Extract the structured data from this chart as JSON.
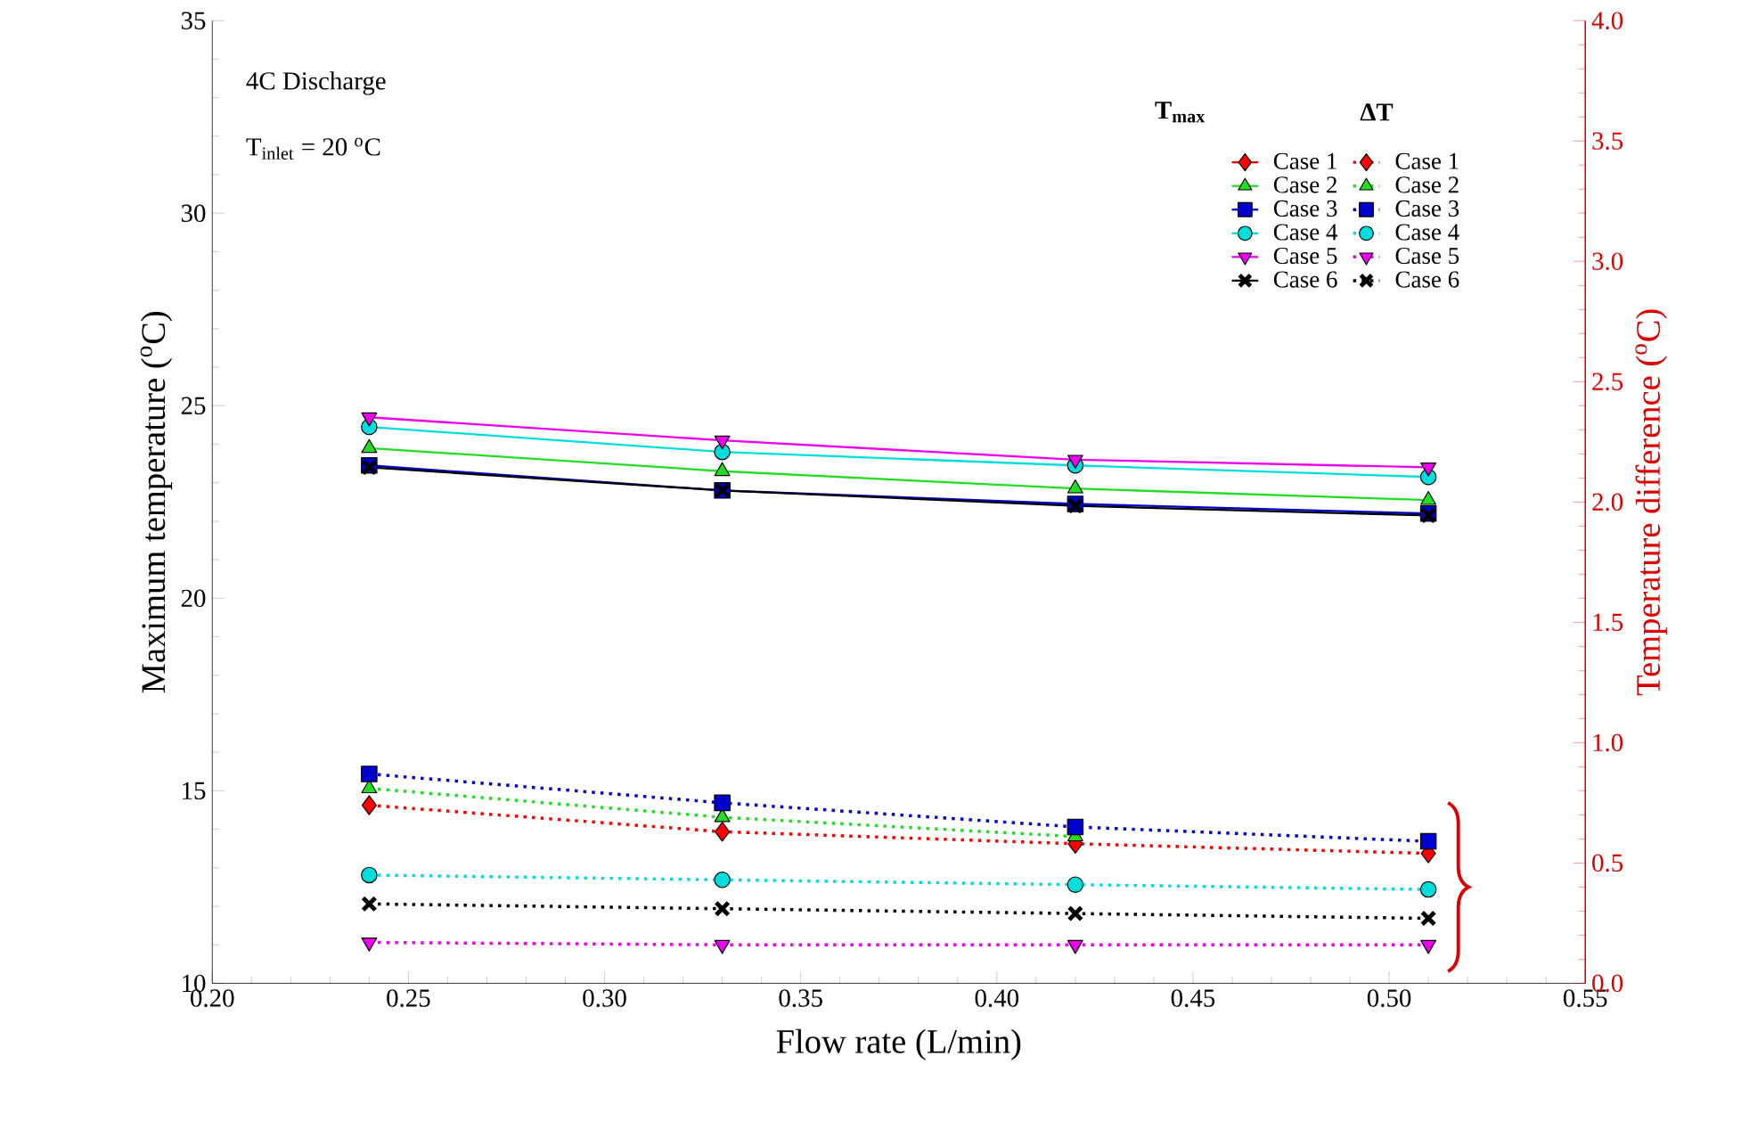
{
  "chart_data": {
    "type": "line",
    "xlabel": "Flow rate (L/min)",
    "ylabel": "Maximum temperature ($^{o}$C)",
    "y2label": "Temperature difference ($^{o}$C)",
    "annotations": [
      "4C Discharge",
      "T$_{inlet}$ = 20 $^{o}$C",
      "T$_{max}$",
      "ΔT"
    ],
    "x": [
      0.24,
      0.33,
      0.42,
      0.51
    ],
    "series": [
      {
        "name": "Case 1",
        "color": "#ff0000",
        "marker": "diamond",
        "line_style": "solid",
        "values": [
          null,
          null,
          null,
          null
        ]
      },
      {
        "name": "Case 2",
        "color": "#22dd22",
        "marker": "triangle",
        "line_style": "solid",
        "values": [
          23.9,
          23.3,
          22.85,
          22.55
        ]
      },
      {
        "name": "Case 3",
        "color": "#0000cc",
        "marker": "square",
        "line_style": "solid",
        "values": [
          23.45,
          22.8,
          22.45,
          22.2
        ]
      },
      {
        "name": "Case 4",
        "color": "#00dddd",
        "marker": "circle",
        "line_style": "solid",
        "values": [
          24.45,
          23.8,
          23.45,
          23.15
        ]
      },
      {
        "name": "Case 5",
        "color": "#ee00ee",
        "marker": "triangle_down",
        "line_style": "solid",
        "values": [
          24.7,
          24.1,
          23.6,
          23.4
        ]
      },
      {
        "name": "Case 6",
        "color": "#000000",
        "marker": "cross",
        "line_style": "solid",
        "values": [
          23.4,
          22.8,
          22.4,
          22.15
        ]
      },
      {
        "name": "Case 1",
        "color": "#ff0000",
        "marker": "diamond",
        "line_style": "dotted",
        "axis": "y2",
        "values": [
          0.74,
          0.63,
          0.58,
          0.54
        ]
      },
      {
        "name": "Case 2",
        "color": "#22dd22",
        "marker": "triangle",
        "line_style": "dotted",
        "axis": "y2",
        "values": [
          0.81,
          0.69,
          0.61,
          null
        ]
      },
      {
        "name": "Case 3",
        "color": "#0000cc",
        "marker": "square",
        "line_style": "dotted",
        "axis": "y2",
        "values": [
          0.87,
          0.75,
          0.65,
          0.59
        ]
      },
      {
        "name": "Case 4",
        "color": "#00dddd",
        "marker": "circle",
        "line_style": "dotted",
        "axis": "y2",
        "values": [
          0.45,
          0.43,
          0.41,
          0.39
        ]
      },
      {
        "name": "Case 5",
        "color": "#ee00ee",
        "marker": "triangle_down",
        "line_style": "dotted",
        "axis": "y2",
        "values": [
          0.17,
          0.16,
          0.16,
          0.16
        ]
      },
      {
        "name": "Case 6",
        "color": "#000000",
        "marker": "cross",
        "line_style": "dotted",
        "axis": "y2",
        "values": [
          0.33,
          0.31,
          0.29,
          0.27
        ]
      }
    ],
    "xlim": [
      0.2,
      0.55
    ],
    "xticks": [
      {
        "value": 0.2,
        "label": "0.20"
      },
      {
        "value": 0.25,
        "label": "0.25"
      },
      {
        "value": 0.3,
        "label": "0.30"
      },
      {
        "value": 0.35,
        "label": "0.35"
      },
      {
        "value": 0.4,
        "label": "0.40"
      },
      {
        "value": 0.45,
        "label": "0.45"
      },
      {
        "value": 0.5,
        "label": "0.50"
      },
      {
        "value": 0.55,
        "label": "0.55"
      }
    ],
    "ylim": [
      10,
      35
    ],
    "yticks": [
      10,
      15,
      20,
      25,
      30,
      35
    ],
    "y2lim": [
      0,
      4
    ],
    "y2ticks": [
      {
        "value": 0,
        "label": "0.0"
      },
      {
        "value": 0.5,
        "label": "0.5"
      },
      {
        "value": 1,
        "label": "1.0"
      },
      {
        "value": 1.5,
        "label": "1.5"
      },
      {
        "value": 2,
        "label": "2.0"
      },
      {
        "value": 2.5,
        "label": "2.5"
      },
      {
        "value": 3,
        "label": "3.0"
      },
      {
        "value": 3.5,
        "label": "3.5"
      },
      {
        "value": 4,
        "label": "4.0"
      }
    ],
    "grid": false,
    "legend": "top right"
  }
}
